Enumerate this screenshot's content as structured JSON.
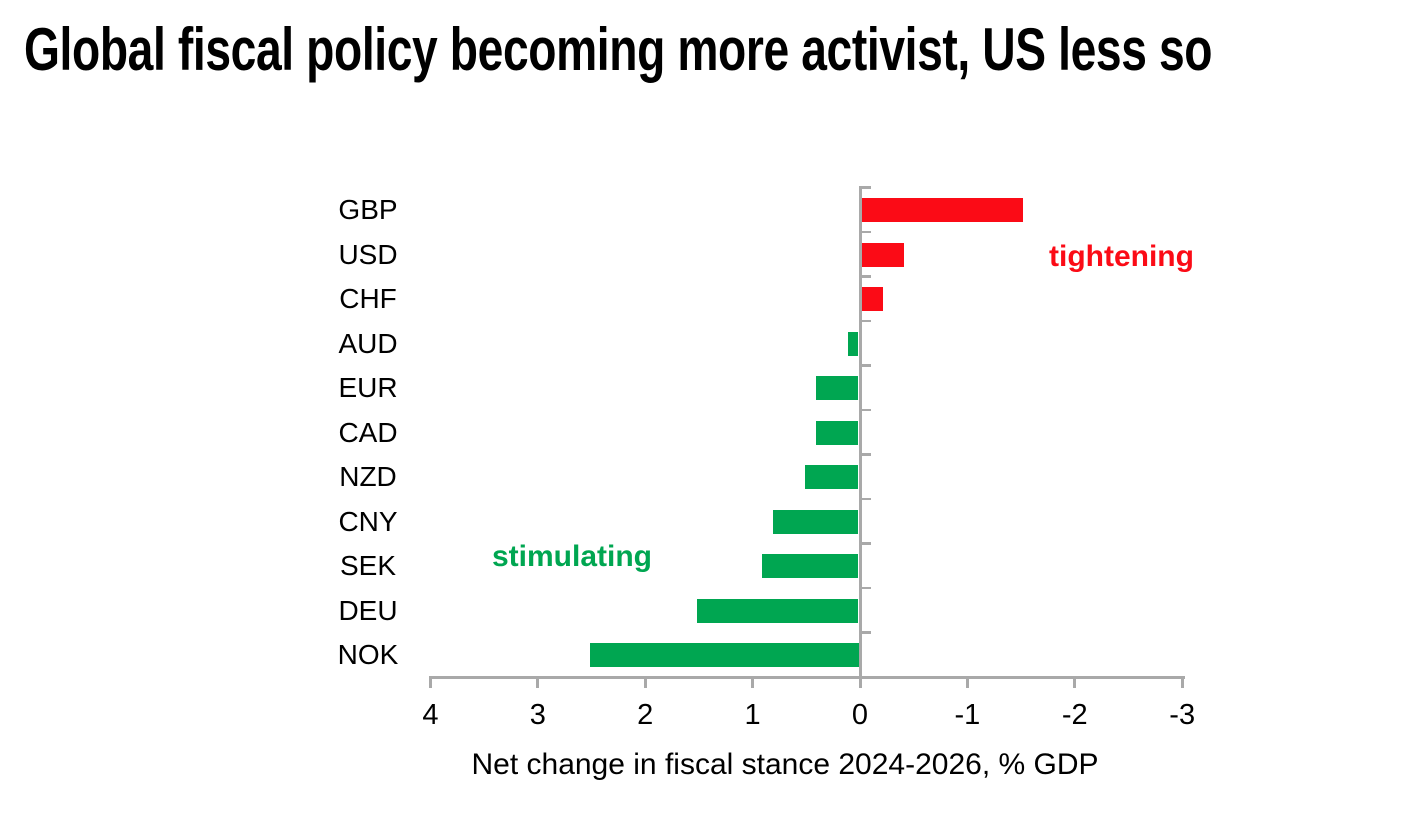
{
  "chart_data": {
    "type": "bar",
    "orientation": "horizontal",
    "title": "Global fiscal policy becoming more activist, US less so",
    "xlabel": "Net change in fiscal stance 2024-2026, % GDP",
    "categories": [
      "GBP",
      "USD",
      "CHF",
      "AUD",
      "EUR",
      "CAD",
      "NZD",
      "CNY",
      "SEK",
      "DEU",
      "NOK"
    ],
    "values": [
      -1.5,
      -0.4,
      -0.2,
      0.1,
      0.4,
      0.4,
      0.5,
      0.8,
      0.9,
      1.5,
      2.5
    ],
    "xticks": [
      4,
      3,
      2,
      1,
      0,
      -1,
      -2,
      -3
    ],
    "xlim": [
      4,
      -3
    ],
    "axis_reversed": true,
    "grid": false,
    "legend_position": "none",
    "bar_colors": {
      "positive": "#00a651",
      "negative": "#fb0b16"
    },
    "annotations": [
      {
        "text": "tightening",
        "color": "#fb0b16",
        "side": "negative"
      },
      {
        "text": "stimulating",
        "color": "#00a651",
        "side": "positive"
      }
    ]
  },
  "colors": {
    "axis": "#a9a9a9",
    "text": "#000000",
    "background": "#ffffff"
  }
}
